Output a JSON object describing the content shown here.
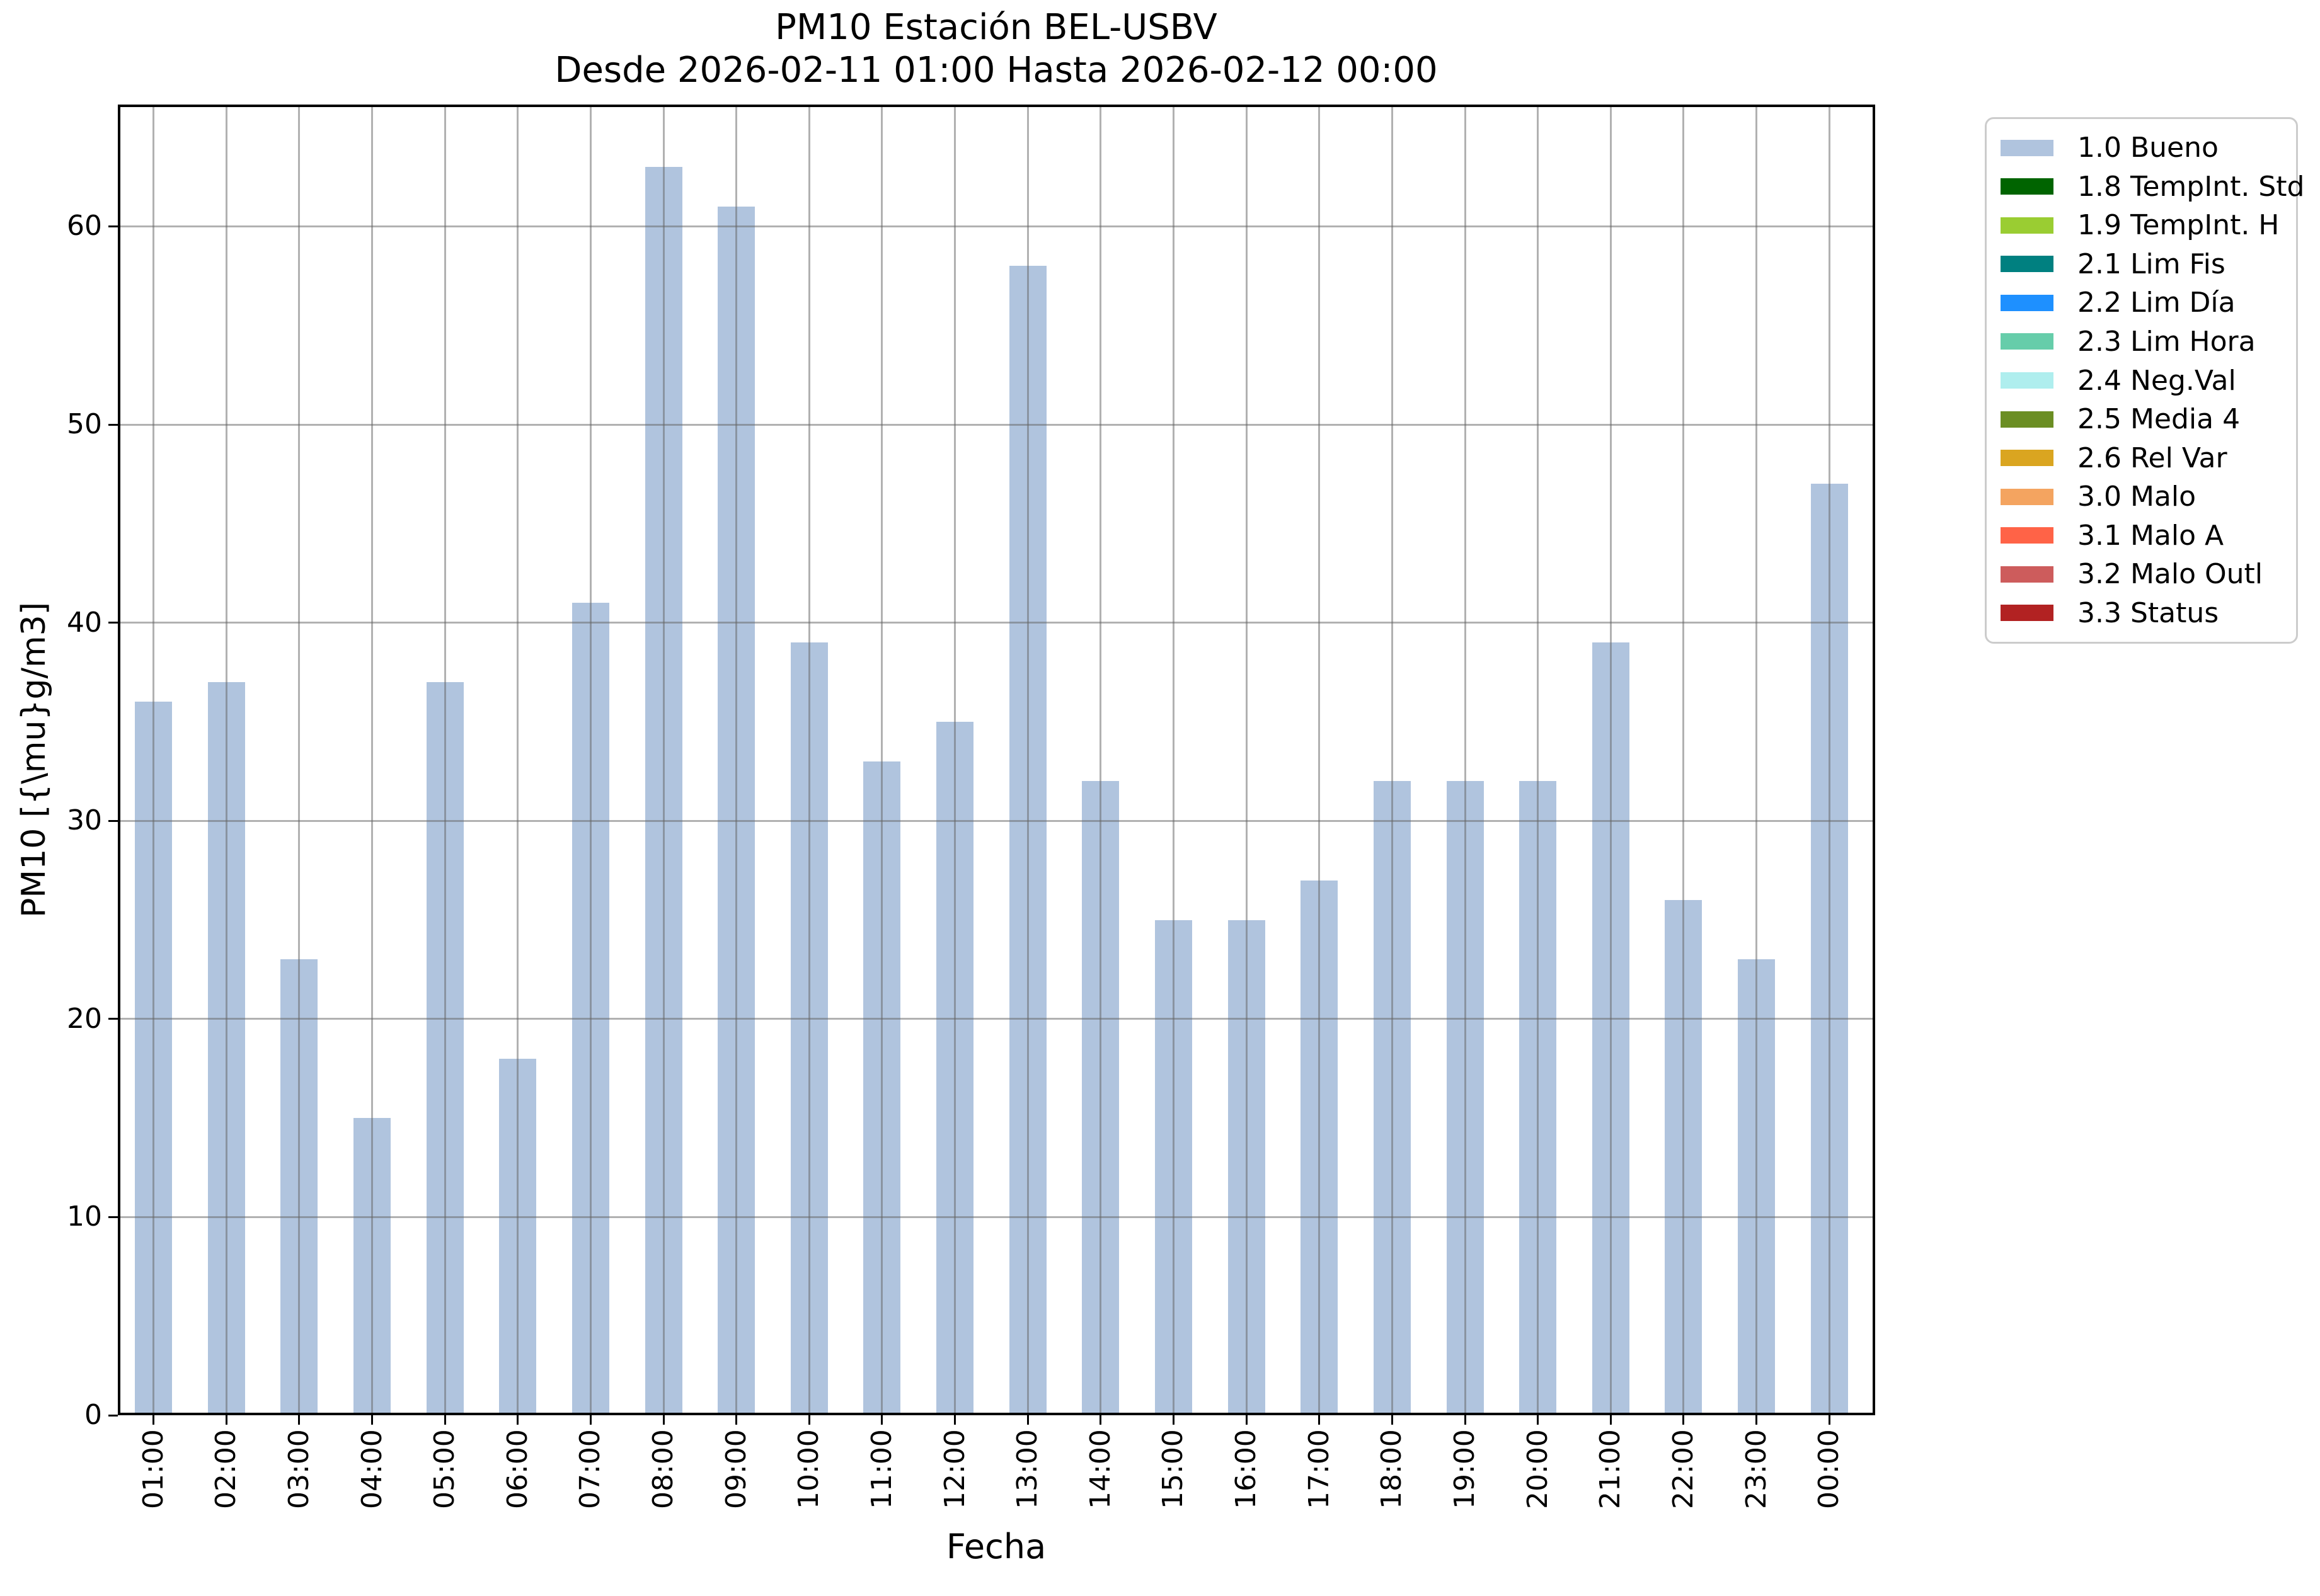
{
  "header": {
    "title": "PM10 Estación BEL-USBV",
    "subtitle": "Desde 2026-02-11 01:00 Hasta 2026-02-12 00:00"
  },
  "chart_data": {
    "type": "bar",
    "title": "PM10 Estación BEL-USBV\nDesde 2026-02-11 01:00 Hasta 2026-02-12 00:00",
    "xlabel": "Fecha",
    "ylabel": "PM10 [{\\mu}g/m3]",
    "categories": [
      "01:00",
      "02:00",
      "03:00",
      "04:00",
      "05:00",
      "06:00",
      "07:00",
      "08:00",
      "09:00",
      "10:00",
      "11:00",
      "12:00",
      "13:00",
      "14:00",
      "15:00",
      "16:00",
      "17:00",
      "18:00",
      "19:00",
      "20:00",
      "21:00",
      "22:00",
      "23:00",
      "00:00"
    ],
    "values": [
      36,
      37,
      23,
      15,
      37,
      18,
      41,
      63,
      61,
      39,
      33,
      35,
      58,
      32,
      25,
      25,
      27,
      32,
      32,
      32,
      39,
      26,
      23,
      47
    ],
    "ylim": [
      0,
      66.15
    ],
    "yticks": [
      0,
      10,
      20,
      30,
      40,
      50,
      60
    ],
    "grid": true,
    "bar_color": "#b0c4de",
    "grid_color": "#b0b0b0",
    "legend_position": "upper right outside",
    "legend": {
      "entries": [
        {
          "label": "1.0 Bueno",
          "color": "#b0c4de"
        },
        {
          "label": "1.8 TempInt. Std",
          "color": "#006400"
        },
        {
          "label": "1.9 TempInt. H",
          "color": "#9acd32"
        },
        {
          "label": "2.1 Lim Fis",
          "color": "#008080"
        },
        {
          "label": "2.2 Lim Día",
          "color": "#1e90ff"
        },
        {
          "label": "2.3 Lim Hora",
          "color": "#66cdaa"
        },
        {
          "label": "2.4 Neg.Val",
          "color": "#afeeee"
        },
        {
          "label": "2.5 Media 4",
          "color": "#6b8e23"
        },
        {
          "label": "2.6 Rel Var",
          "color": "#daa520"
        },
        {
          "label": "3.0 Malo",
          "color": "#f4a460"
        },
        {
          "label": "3.1 Malo A",
          "color": "#ff6347"
        },
        {
          "label": "3.2 Malo Outl",
          "color": "#cd5c5c"
        },
        {
          "label": "3.3 Status",
          "color": "#b22222"
        }
      ]
    }
  }
}
